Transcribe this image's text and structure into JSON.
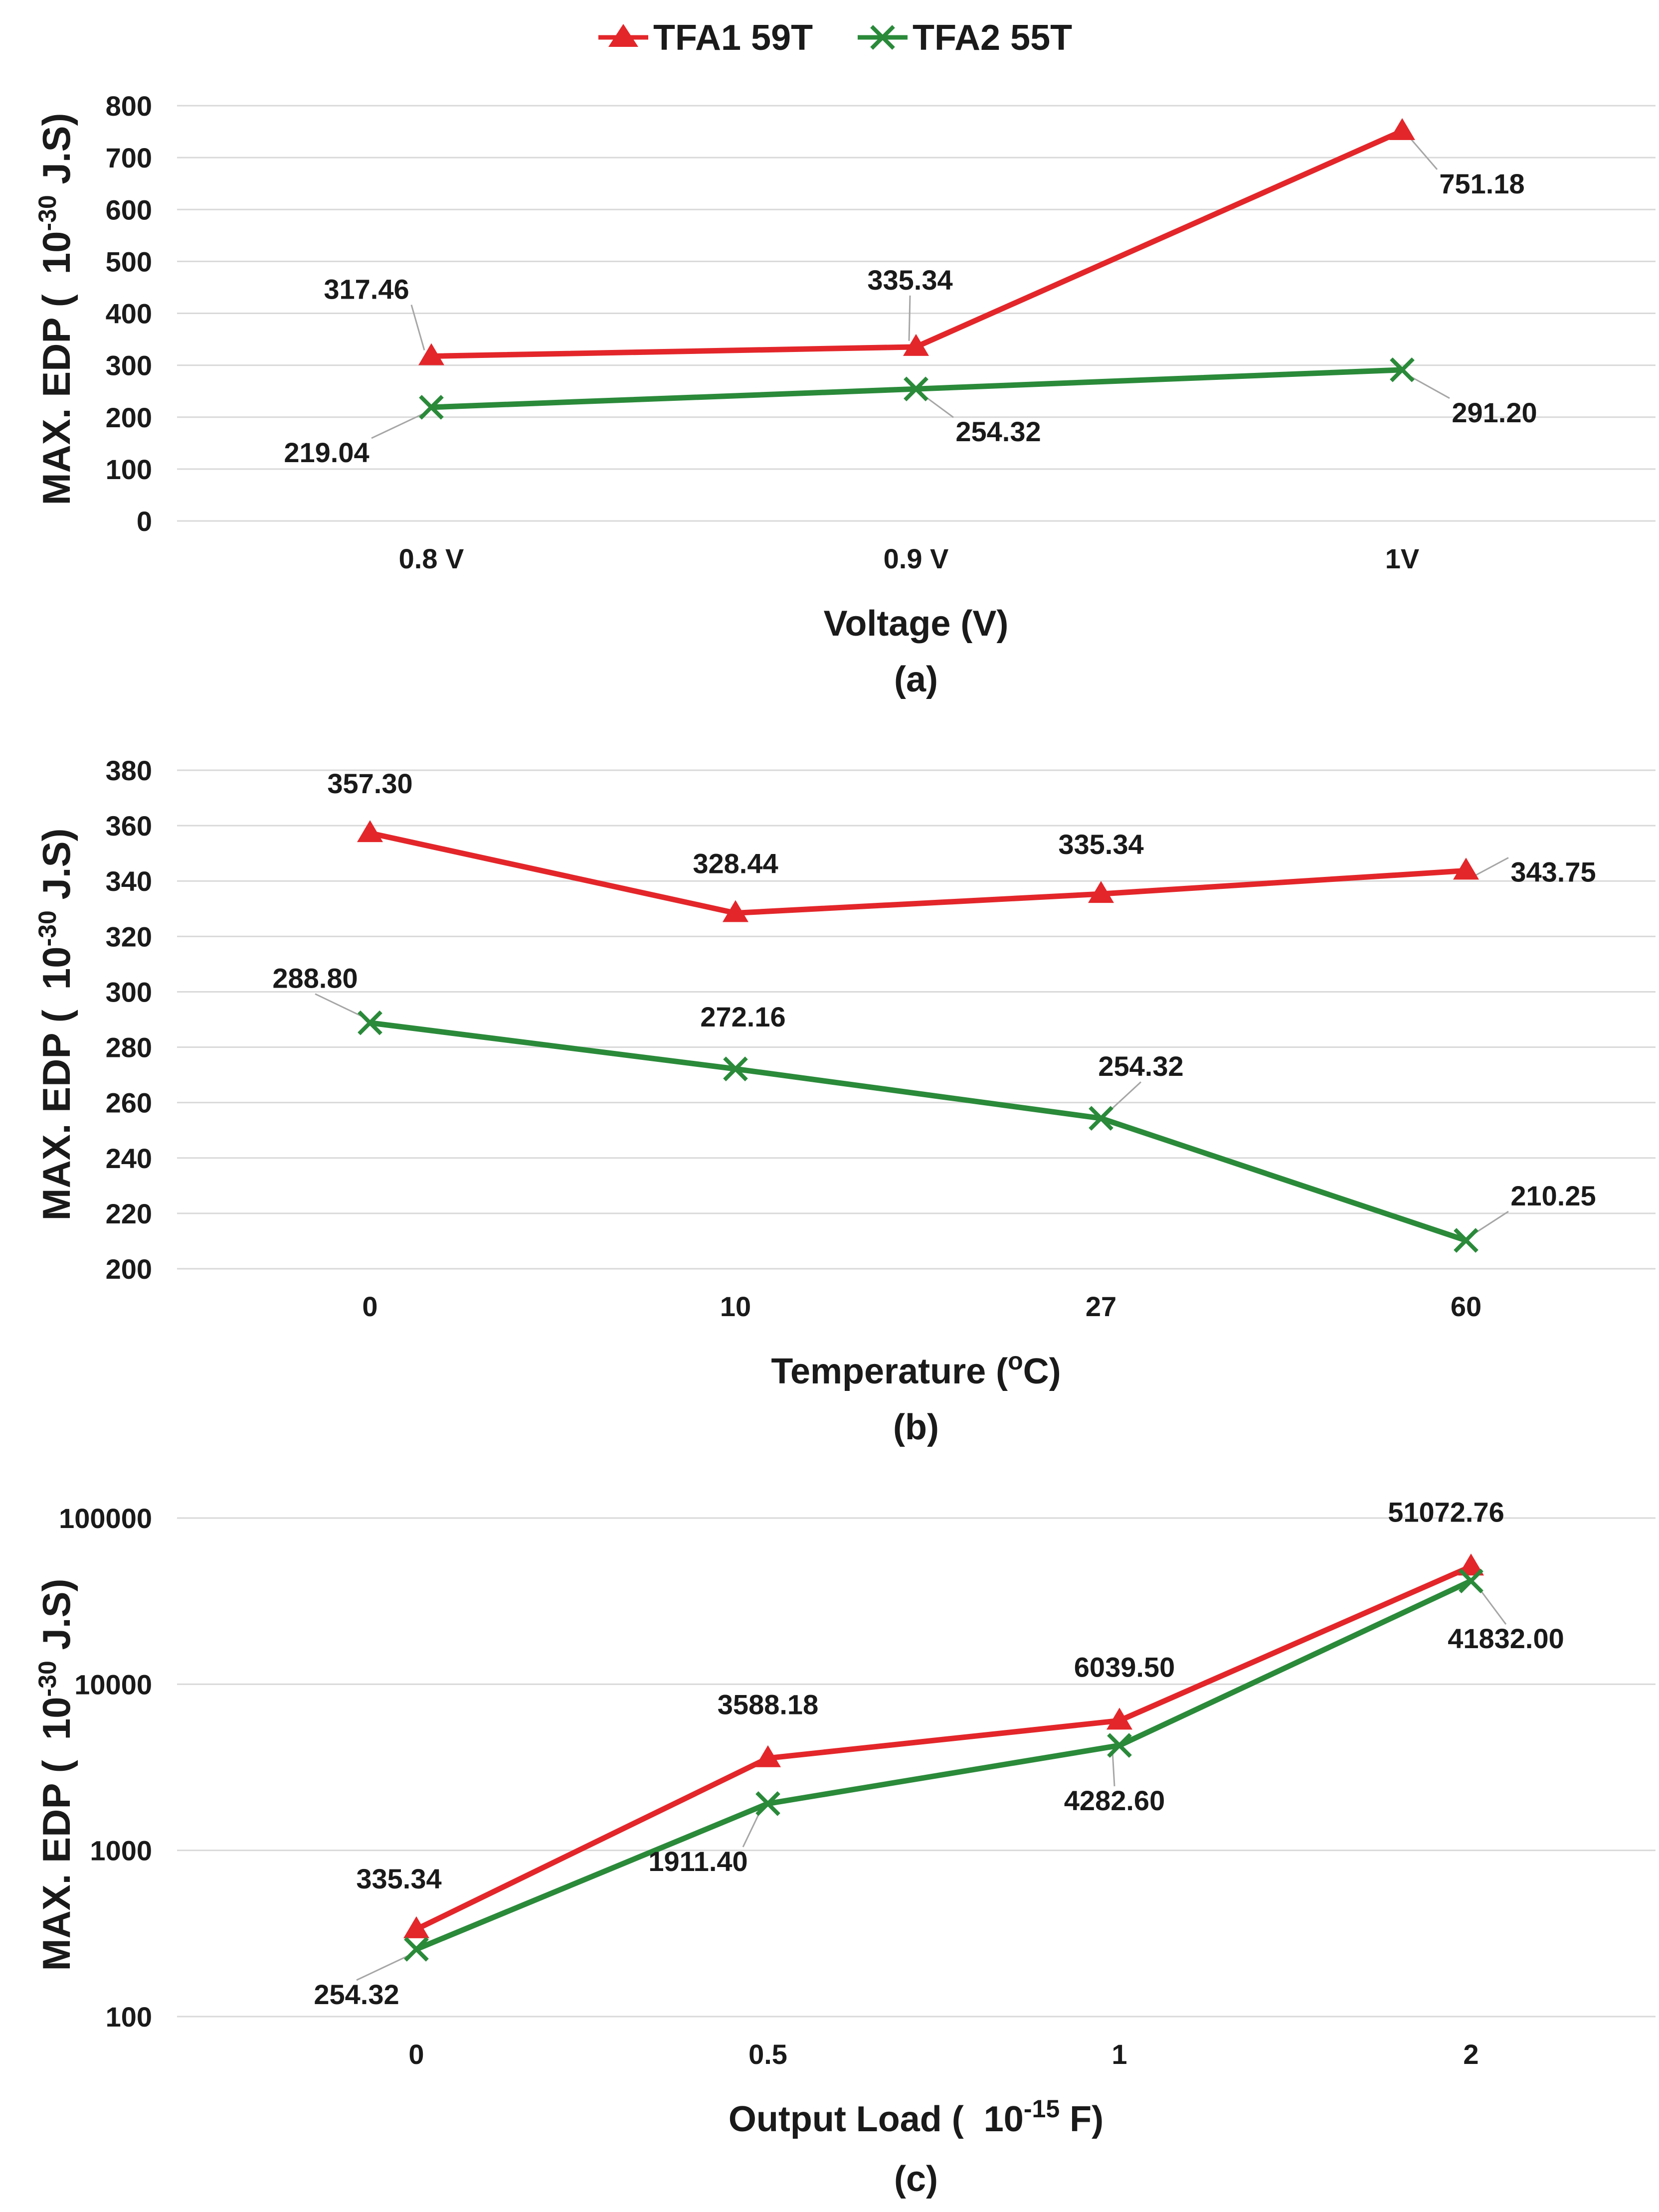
{
  "colors": {
    "series1": "#e3262a",
    "series2": "#2a8a3a",
    "grid": "#d9d9d9",
    "text": "#1a1a1a"
  },
  "legend": [
    {
      "name": "TFA1 59T",
      "marker": "triangle"
    },
    {
      "name": "TFA2 55T",
      "marker": "x"
    }
  ],
  "chart_data": [
    {
      "type": "line",
      "caption": "(a)",
      "xlabel": "Voltage (V)",
      "ylabel_main": "MAX. EDP (",
      "ylabel_unit": "10",
      "ylabel_exp": "-30",
      "ylabel_tail": " J.S)",
      "scale": "linear",
      "ylim": [
        0,
        800
      ],
      "yticks": [
        0,
        100,
        200,
        300,
        400,
        500,
        600,
        700,
        800
      ],
      "ytick_labels": [
        "0",
        "100",
        "200",
        "300",
        "400",
        "500",
        "600",
        "700",
        "800"
      ],
      "categories": [
        "0.8 V",
        "0.9 V",
        "1V"
      ],
      "series": [
        {
          "name": "TFA1 59T",
          "values": [
            317.46,
            335.34,
            751.18
          ],
          "labels": [
            "317.46",
            "335.34",
            "751.18"
          ]
        },
        {
          "name": "TFA2 55T",
          "values": [
            219.04,
            254.32,
            291.2
          ],
          "labels": [
            "219.04",
            "254.32",
            "291.20"
          ]
        }
      ]
    },
    {
      "type": "line",
      "caption": "(b)",
      "xlabel_main": "Temperature (",
      "xlabel_sup": "o",
      "xlabel_tail": "C)",
      "ylabel_main": "MAX. EDP (",
      "ylabel_unit": "10",
      "ylabel_exp": "-30",
      "ylabel_tail": " J.S)",
      "scale": "linear",
      "ylim": [
        200,
        380
      ],
      "yticks": [
        200,
        220,
        240,
        260,
        280,
        300,
        320,
        340,
        360,
        380
      ],
      "ytick_labels": [
        "200",
        "220",
        "240",
        "260",
        "280",
        "300",
        "320",
        "340",
        "360",
        "380"
      ],
      "categories": [
        "0",
        "10",
        "27",
        "60"
      ],
      "series": [
        {
          "name": "TFA1 59T",
          "values": [
            357.3,
            328.44,
            335.34,
            343.75
          ],
          "labels": [
            "357.30",
            "328.44",
            "335.34",
            "343.75"
          ]
        },
        {
          "name": "TFA2 55T",
          "values": [
            288.8,
            272.16,
            254.32,
            210.25
          ],
          "labels": [
            "288.80",
            "272.16",
            "254.32",
            "210.25"
          ]
        }
      ]
    },
    {
      "type": "line",
      "caption": "(c)",
      "xlabel_main": "Output Load (",
      "xlabel_unit": "10",
      "xlabel_exp": "-15",
      "xlabel_tail": " F)",
      "ylabel_main": "MAX. EDP (",
      "ylabel_unit": "10",
      "ylabel_exp": "-30",
      "ylabel_tail": " J.S)",
      "scale": "log",
      "ylim": [
        100,
        100000
      ],
      "yticks": [
        100,
        1000,
        10000,
        100000
      ],
      "ytick_labels": [
        "100",
        "1000",
        "10000",
        "100000"
      ],
      "categories": [
        "0",
        "0.5",
        "1",
        "2"
      ],
      "series": [
        {
          "name": "TFA1 59T",
          "values": [
            335.34,
            3588.18,
            6039.5,
            51072.76
          ],
          "labels": [
            "335.34",
            "3588.18",
            "6039.50",
            "51072.76"
          ]
        },
        {
          "name": "TFA2 55T",
          "values": [
            254.32,
            1911.4,
            4282.6,
            41832.0
          ],
          "labels": [
            "254.32",
            "1911.40",
            "4282.60",
            "41832.00"
          ]
        }
      ]
    }
  ]
}
